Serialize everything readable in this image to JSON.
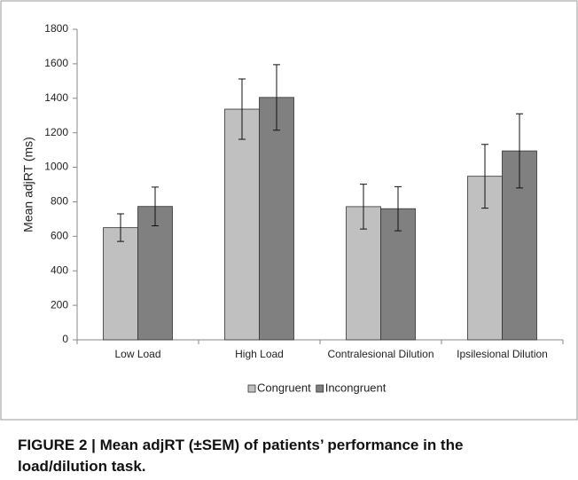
{
  "chart_data": {
    "type": "bar",
    "y_label": "Mean adjRT (ms)",
    "categories": [
      "Low Load",
      "High Load",
      "Contralesional Dilution",
      "Ipsilesional Dilution"
    ],
    "series": [
      {
        "name": "Congruent",
        "color": "#c0c0c0",
        "values": [
          650,
          1337,
          772,
          948
        ],
        "errors": [
          80,
          175,
          130,
          185
        ]
      },
      {
        "name": "Incongruent",
        "color": "#808080",
        "values": [
          773,
          1405,
          760,
          1095
        ],
        "errors": [
          112,
          190,
          128,
          215
        ]
      }
    ],
    "ylim": [
      0,
      1800
    ],
    "yticks": [
      0,
      200,
      400,
      600,
      800,
      1000,
      1200,
      1400,
      1600,
      1800
    ],
    "legend": "bottom",
    "caption": "FIGURE 2 | Mean adjRT (±SEM) of patients’ performance in the load/dilution task."
  }
}
